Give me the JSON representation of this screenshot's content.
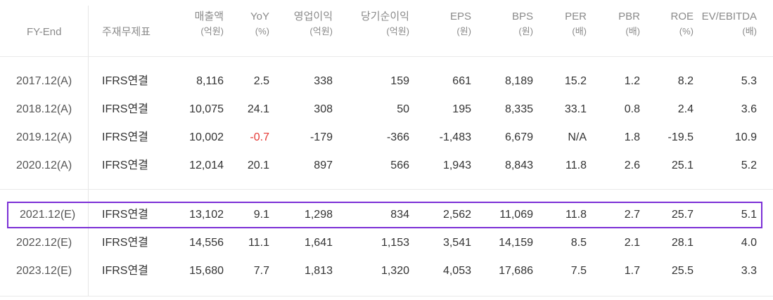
{
  "headers": {
    "fy": "FY-End",
    "fs": "주재무제표",
    "revenue": {
      "label": "매출액",
      "unit": "(억원)"
    },
    "yoy": {
      "label": "YoY",
      "unit": "(%)"
    },
    "op": {
      "label": "영업이익",
      "unit": "(억원)"
    },
    "net": {
      "label": "당기순이익",
      "unit": "(억원)"
    },
    "eps": {
      "label": "EPS",
      "unit": "(원)"
    },
    "bps": {
      "label": "BPS",
      "unit": "(원)"
    },
    "per": {
      "label": "PER",
      "unit": "(배)"
    },
    "pbr": {
      "label": "PBR",
      "unit": "(배)"
    },
    "roe": {
      "label": "ROE",
      "unit": "(%)"
    },
    "ev": {
      "label": "EV/EBITDA",
      "unit": "(배)"
    }
  },
  "actual_rows": [
    {
      "fy": "2017.12(A)",
      "fs": "IFRS연결",
      "revenue": "8,116",
      "yoy": "2.5",
      "op": "338",
      "net": "159",
      "eps": "661",
      "bps": "8,189",
      "per": "15.2",
      "pbr": "1.2",
      "roe": "8.2",
      "ev": "5.3"
    },
    {
      "fy": "2018.12(A)",
      "fs": "IFRS연결",
      "revenue": "10,075",
      "yoy": "24.1",
      "op": "308",
      "net": "50",
      "eps": "195",
      "bps": "8,335",
      "per": "33.1",
      "pbr": "0.8",
      "roe": "2.4",
      "ev": "3.6"
    },
    {
      "fy": "2019.12(A)",
      "fs": "IFRS연결",
      "revenue": "10,002",
      "yoy": "-0.7",
      "op": "-179",
      "net": "-366",
      "eps": "-1,483",
      "bps": "6,679",
      "per": "N/A",
      "pbr": "1.8",
      "roe": "-19.5",
      "ev": "10.9"
    },
    {
      "fy": "2020.12(A)",
      "fs": "IFRS연결",
      "revenue": "12,014",
      "yoy": "20.1",
      "op": "897",
      "net": "566",
      "eps": "1,943",
      "bps": "8,843",
      "per": "11.8",
      "pbr": "2.6",
      "roe": "25.1",
      "ev": "5.2"
    }
  ],
  "estimate_rows": [
    {
      "fy": "2021.12(E)",
      "fs": "IFRS연결",
      "revenue": "13,102",
      "yoy": "9.1",
      "op": "1,298",
      "net": "834",
      "eps": "2,562",
      "bps": "11,069",
      "per": "11.8",
      "pbr": "2.7",
      "roe": "25.7",
      "ev": "5.1"
    },
    {
      "fy": "2022.12(E)",
      "fs": "IFRS연결",
      "revenue": "14,556",
      "yoy": "11.1",
      "op": "1,641",
      "net": "1,153",
      "eps": "3,541",
      "bps": "14,159",
      "per": "8.5",
      "pbr": "2.1",
      "roe": "28.1",
      "ev": "4.0"
    },
    {
      "fy": "2023.12(E)",
      "fs": "IFRS연결",
      "revenue": "15,680",
      "yoy": "7.7",
      "op": "1,813",
      "net": "1,320",
      "eps": "4,053",
      "bps": "17,686",
      "per": "7.5",
      "pbr": "1.7",
      "roe": "25.5",
      "ev": "3.3"
    }
  ],
  "colors": {
    "highlight_border": "#7b2fd6",
    "negative_yoy": "#e53935"
  }
}
